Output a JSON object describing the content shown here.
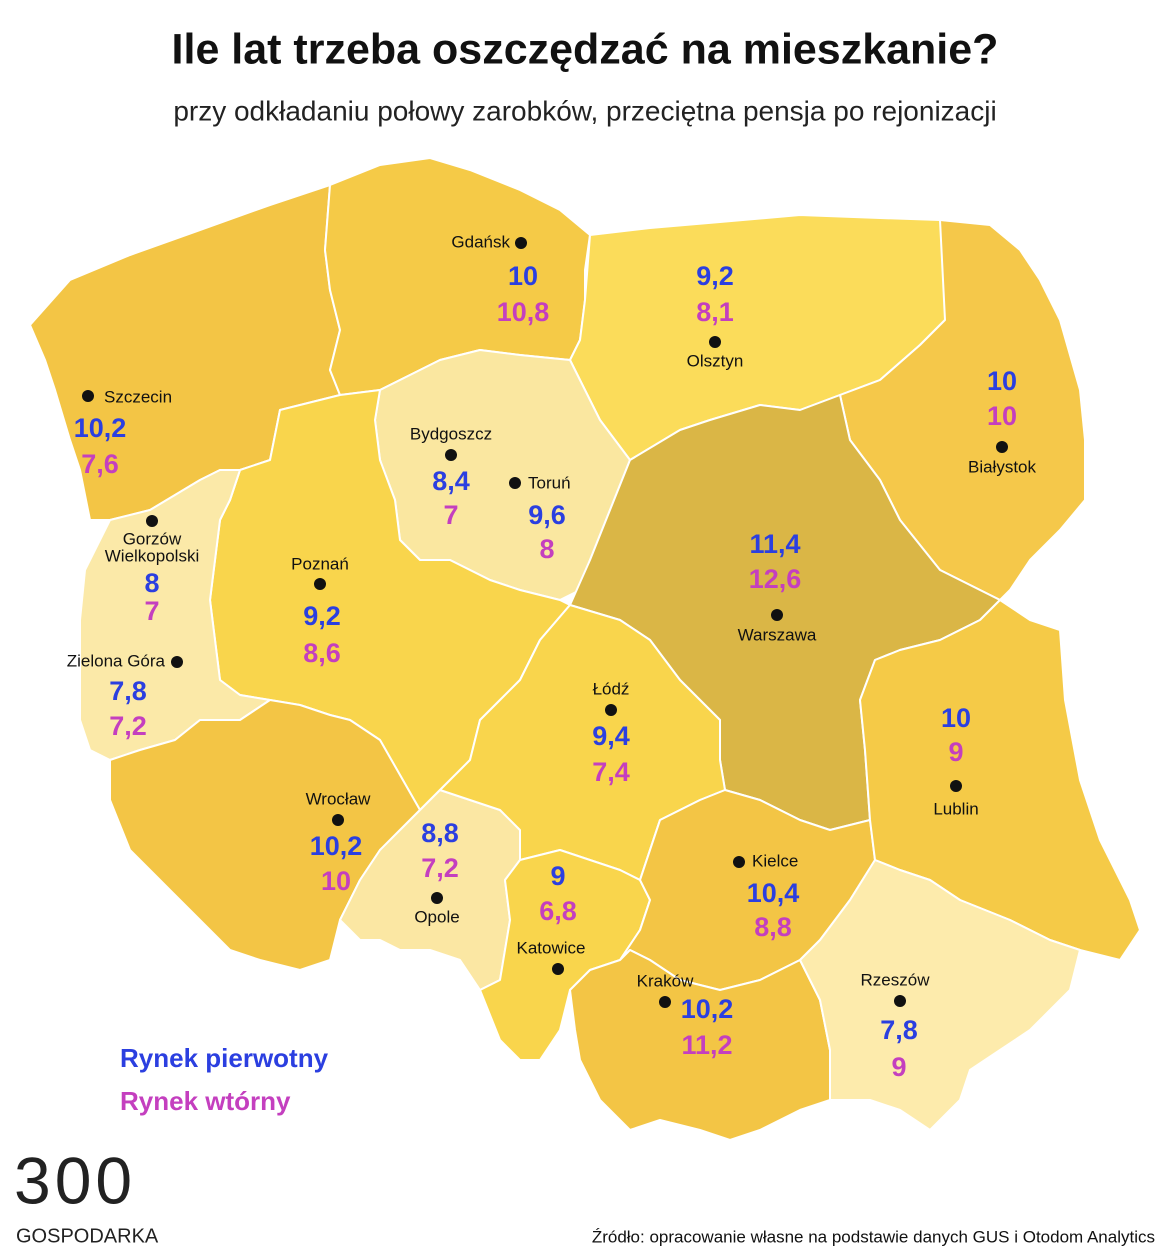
{
  "header": {
    "title": "Ile lat trzeba oszczędzać na mieszkanie?",
    "subtitle": "przy odkładaniu połowy zarobków, przeciętna pensja po rejonizacji"
  },
  "cities": [
    {
      "name": "Gdańsk",
      "primary": "10",
      "secondary": "10,8"
    },
    {
      "name": "Olsztyn",
      "primary": "9,2",
      "secondary": "8,1"
    },
    {
      "name": "Szczecin",
      "primary": "10,2",
      "secondary": "7,6"
    },
    {
      "name": "Białystok",
      "primary": "10",
      "secondary": "10"
    },
    {
      "name": "Bydgoszcz",
      "primary": "8,4",
      "secondary": "7"
    },
    {
      "name": "Toruń",
      "primary": "9,6",
      "secondary": "8"
    },
    {
      "name": [
        "Gorzów",
        "Wielkopolski"
      ],
      "primary": "8",
      "secondary": "7"
    },
    {
      "name": "Poznań",
      "primary": "9,2",
      "secondary": "8,6"
    },
    {
      "name": "Warszawa",
      "primary": "11,4",
      "secondary": "12,6"
    },
    {
      "name": "Zielona Góra",
      "primary": "7,8",
      "secondary": "7,2"
    },
    {
      "name": "Łódź",
      "primary": "9,4",
      "secondary": "7,4"
    },
    {
      "name": "Lublin",
      "primary": "10",
      "secondary": "9"
    },
    {
      "name": "Wrocław",
      "primary": "10,2",
      "secondary": "10"
    },
    {
      "name": "Opole",
      "primary": "8,8",
      "secondary": "7,2"
    },
    {
      "name": "Katowice",
      "primary": "9",
      "secondary": "6,8"
    },
    {
      "name": "Kielce",
      "primary": "10,4",
      "secondary": "8,8"
    },
    {
      "name": "Kraków",
      "primary": "10,2",
      "secondary": "11,2"
    },
    {
      "name": "Rzeszów",
      "primary": "7,8",
      "secondary": "9"
    }
  ],
  "legend": {
    "primary": "Rynek pierwotny",
    "secondary": "Rynek wtórny"
  },
  "logo": {
    "mark": "300",
    "name": "GOSPODARKA"
  },
  "source": "Źródło: opracowanie własne na podstawie danych GUS i Otodom Analytics"
}
